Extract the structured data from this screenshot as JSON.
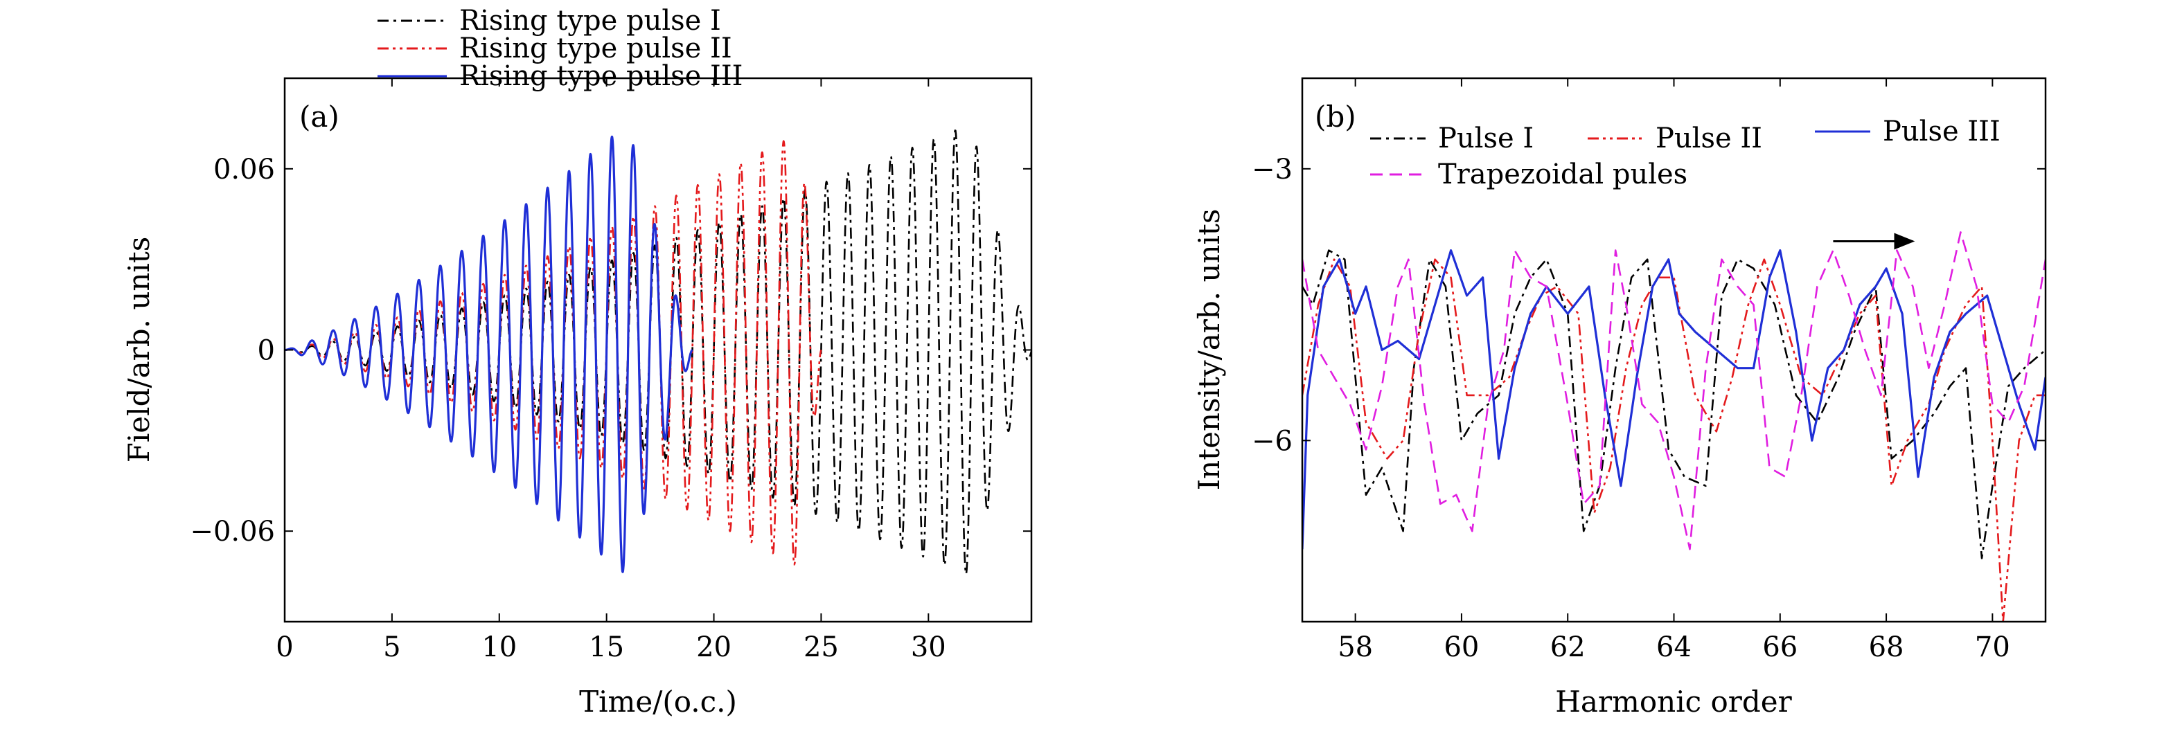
{
  "chart_data": [
    {
      "type": "line",
      "panel_label": "(a)",
      "xlabel": "Time/(o.c.)",
      "ylabel": "Field/arb. units",
      "xlim": [
        0,
        34.8
      ],
      "ylim": [
        -0.09,
        0.09
      ],
      "xticks": [
        0,
        5,
        10,
        15,
        20,
        25,
        30
      ],
      "xtick_labels": [
        "0",
        "5",
        "10",
        "15",
        "20",
        "25",
        "30"
      ],
      "yticks": [
        -0.06,
        0,
        0.06
      ],
      "ytick_labels": [
        "−0.06",
        "0",
        "0.06"
      ],
      "legend_position": "above-plot",
      "series": [
        {
          "name": "Rising type pulse I",
          "color": "#000000",
          "dash": "dashdot",
          "model": {
            "t_start": 0,
            "t_end": 34.8,
            "t_peak": 32.0,
            "amp_peak": 0.075,
            "period": 1.0
          }
        },
        {
          "name": "Rising type pulse II",
          "color": "#e41a1c",
          "dash": "dashdotdot",
          "model": {
            "t_start": 0,
            "t_end": 25.0,
            "t_peak": 24.0,
            "amp_peak": 0.072,
            "period": 1.0
          }
        },
        {
          "name": "Rising type pulse III",
          "color": "#1f2fd6",
          "dash": "solid",
          "model": {
            "t_start": 0,
            "t_end": 19.0,
            "t_peak": 16.0,
            "amp_peak": 0.075,
            "period": 1.0
          }
        }
      ]
    },
    {
      "type": "line",
      "panel_label": "(b)",
      "xlabel": "Harmonic order",
      "ylabel": "Intensity/arb. units",
      "xlim": [
        57,
        71
      ],
      "ylim": [
        -8.0,
        -2.0
      ],
      "xticks": [
        58,
        60,
        62,
        64,
        66,
        68,
        70
      ],
      "xtick_labels": [
        "58",
        "60",
        "62",
        "64",
        "66",
        "68",
        "70"
      ],
      "yticks": [
        -6,
        -3
      ],
      "ytick_labels": [
        "−6",
        "−3"
      ],
      "legend_position": "top-inside",
      "arrow": {
        "from": [
          67.0,
          -3.8
        ],
        "to": [
          68.5,
          -3.8
        ]
      },
      "series": [
        {
          "name": "Pulse I",
          "color": "#000000",
          "dash": "dashdot",
          "x": [
            57,
            57.2,
            57.5,
            57.8,
            58.2,
            58.5,
            58.9,
            59.1,
            59.4,
            59.7,
            60.0,
            60.3,
            60.7,
            61.0,
            61.3,
            61.6,
            62.0,
            62.3,
            62.6,
            62.9,
            63.2,
            63.5,
            63.9,
            64.2,
            64.6,
            64.9,
            65.2,
            65.5,
            65.9,
            66.3,
            66.7,
            67.1,
            67.4,
            67.8,
            68.1,
            68.5,
            68.9,
            69.2,
            69.5,
            69.8,
            70.0,
            70.3,
            70.6,
            71.0
          ],
          "y": [
            -4.3,
            -4.5,
            -3.9,
            -4.0,
            -6.6,
            -6.3,
            -7.0,
            -5.2,
            -4.0,
            -4.3,
            -6.0,
            -5.7,
            -5.5,
            -4.6,
            -4.2,
            -4.0,
            -4.6,
            -7.0,
            -6.5,
            -5.2,
            -4.2,
            -4.0,
            -6.1,
            -6.4,
            -6.5,
            -4.4,
            -4.0,
            -4.1,
            -4.5,
            -5.5,
            -5.8,
            -5.3,
            -4.8,
            -4.3,
            -6.2,
            -6.0,
            -5.7,
            -5.4,
            -5.2,
            -7.3,
            -6.5,
            -5.4,
            -5.2,
            -5.0
          ]
        },
        {
          "name": "Pulse II",
          "color": "#e41a1c",
          "dash": "dashdotdot",
          "x": [
            57,
            57.3,
            57.6,
            57.9,
            58.2,
            58.6,
            58.9,
            59.2,
            59.5,
            59.8,
            60.1,
            60.5,
            60.9,
            61.2,
            61.5,
            61.8,
            62.2,
            62.5,
            62.8,
            63.1,
            63.4,
            63.7,
            64.0,
            64.4,
            64.8,
            65.1,
            65.4,
            65.7,
            66.0,
            66.4,
            66.8,
            67.2,
            67.5,
            67.8,
            68.1,
            68.4,
            68.8,
            69.1,
            69.5,
            69.8,
            70.0,
            70.2,
            70.5,
            70.8,
            71.0
          ],
          "y": [
            -5.5,
            -4.5,
            -4.0,
            -4.3,
            -5.8,
            -6.2,
            -6.0,
            -4.8,
            -4.0,
            -4.2,
            -5.5,
            -5.5,
            -5.3,
            -4.8,
            -4.4,
            -4.3,
            -4.6,
            -6.8,
            -6.3,
            -5.2,
            -4.5,
            -4.2,
            -4.2,
            -5.5,
            -5.9,
            -5.3,
            -4.5,
            -4.0,
            -4.5,
            -5.3,
            -5.5,
            -5.0,
            -4.6,
            -4.4,
            -6.5,
            -6.0,
            -5.6,
            -5.0,
            -4.5,
            -4.3,
            -6.0,
            -8.0,
            -6.0,
            -5.5,
            -5.5
          ]
        },
        {
          "name": "Pulse III",
          "color": "#1f2fd6",
          "dash": "solid",
          "x": [
            57,
            57.1,
            57.4,
            57.7,
            58.0,
            58.2,
            58.5,
            58.8,
            59.2,
            59.5,
            59.8,
            60.1,
            60.4,
            60.7,
            61.0,
            61.3,
            61.6,
            62.0,
            62.4,
            62.7,
            63.0,
            63.3,
            63.6,
            63.9,
            64.1,
            64.4,
            64.8,
            65.2,
            65.5,
            65.8,
            66.0,
            66.3,
            66.6,
            66.9,
            67.2,
            67.5,
            67.8,
            68.0,
            68.3,
            68.6,
            68.9,
            69.2,
            69.5,
            69.9,
            70.2,
            70.5,
            70.8,
            71.0
          ],
          "y": [
            -7.2,
            -5.5,
            -4.3,
            -4.0,
            -4.6,
            -4.3,
            -5.0,
            -4.9,
            -5.1,
            -4.5,
            -3.9,
            -4.4,
            -4.2,
            -6.2,
            -5.2,
            -4.6,
            -4.3,
            -4.6,
            -4.3,
            -5.5,
            -6.5,
            -5.3,
            -4.3,
            -4.0,
            -4.6,
            -4.8,
            -5.0,
            -5.2,
            -5.2,
            -4.2,
            -3.9,
            -4.8,
            -6.0,
            -5.2,
            -5.0,
            -4.5,
            -4.3,
            -4.1,
            -4.6,
            -6.4,
            -5.3,
            -4.8,
            -4.6,
            -4.4,
            -5.0,
            -5.6,
            -6.1,
            -5.3
          ]
        },
        {
          "name": "Trapezoidal pules",
          "color": "#e01ee0",
          "dash": "dashed",
          "x": [
            57,
            57.3,
            57.6,
            57.9,
            58.2,
            58.5,
            58.8,
            59.0,
            59.3,
            59.6,
            59.9,
            60.2,
            60.5,
            60.8,
            61.0,
            61.3,
            61.6,
            62.0,
            62.3,
            62.6,
            62.9,
            63.1,
            63.4,
            63.7,
            64.0,
            64.3,
            64.6,
            64.9,
            65.2,
            65.5,
            65.8,
            66.1,
            66.4,
            66.7,
            67.0,
            67.3,
            67.6,
            67.9,
            68.2,
            68.5,
            68.8,
            69.1,
            69.4,
            69.7,
            70.0,
            70.3,
            70.6,
            71.0
          ],
          "y": [
            -4.0,
            -5.0,
            -5.3,
            -5.6,
            -6.1,
            -5.4,
            -4.3,
            -4.0,
            -5.6,
            -6.7,
            -6.6,
            -7.0,
            -5.6,
            -5.0,
            -3.9,
            -4.2,
            -4.3,
            -5.6,
            -6.7,
            -6.5,
            -3.9,
            -4.5,
            -5.6,
            -5.8,
            -6.4,
            -7.2,
            -5.2,
            -4.0,
            -4.3,
            -4.5,
            -6.3,
            -6.4,
            -5.5,
            -4.3,
            -3.9,
            -4.4,
            -5.0,
            -5.5,
            -3.9,
            -4.3,
            -5.2,
            -4.5,
            -3.7,
            -4.3,
            -5.6,
            -5.8,
            -5.4,
            -4.0
          ]
        }
      ]
    }
  ]
}
